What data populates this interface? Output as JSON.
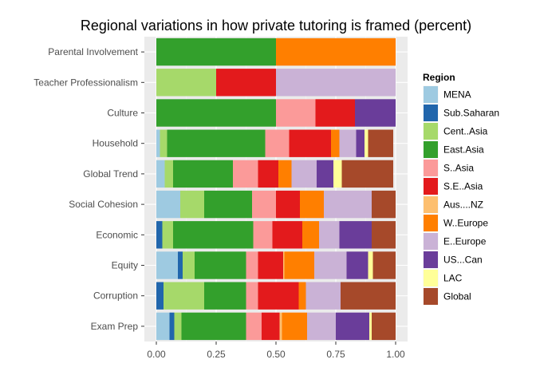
{
  "chart_data": {
    "type": "bar",
    "orientation": "horizontal",
    "stacked": true,
    "title": "Regional variations in how private tutoring is framed (percent)",
    "xlabel": "",
    "ylabel": "",
    "xlim": [
      0,
      1
    ],
    "x_ticks": [
      "0.00",
      "0.25",
      "0.50",
      "0.75",
      "1.00"
    ],
    "grid": true,
    "legend_position": "right",
    "legend_title": "Region",
    "categories": [
      "Parental Involvement",
      "Teacher Professionalism",
      "Culture",
      "Household",
      "Global Trend",
      "Social Cohesion",
      "Economic",
      "Equity",
      "Corruption",
      "Exam Prep"
    ],
    "series": [
      {
        "name": "MENA",
        "color": "#9ecae1",
        "values": [
          0,
          0,
          0,
          0.015,
          0.035,
          0.1,
          0,
          0.09,
          0,
          0.055
        ]
      },
      {
        "name": "Sub.Saharan",
        "color": "#2166ac",
        "values": [
          0,
          0,
          0,
          0,
          0,
          0,
          0.025,
          0.02,
          0.03,
          0.02
        ]
      },
      {
        "name": "Cent..Asia",
        "color": "#a6d96a",
        "values": [
          0,
          0.25,
          0,
          0.03,
          0.035,
          0.1,
          0.045,
          0.05,
          0.17,
          0.03
        ]
      },
      {
        "name": "East.Asia",
        "color": "#33a02c",
        "values": [
          0.5,
          0,
          0.5,
          0.41,
          0.25,
          0.2,
          0.335,
          0.215,
          0.175,
          0.27
        ]
      },
      {
        "name": "S..Asia",
        "color": "#fb9a99",
        "values": [
          0,
          0,
          0.165,
          0.1,
          0.105,
          0.1,
          0.08,
          0.05,
          0.05,
          0.065
        ]
      },
      {
        "name": "S.E..Asia",
        "color": "#e31a1c",
        "values": [
          0,
          0.25,
          0.165,
          0.175,
          0.085,
          0.1,
          0.125,
          0.105,
          0.17,
          0.075
        ]
      },
      {
        "name": "Aus....NZ",
        "color": "#fdbf6f",
        "values": [
          0,
          0,
          0,
          0,
          0,
          0,
          0,
          0.005,
          0,
          0.01
        ]
      },
      {
        "name": "W..Europe",
        "color": "#ff7f00",
        "values": [
          0.5,
          0,
          0,
          0.035,
          0.055,
          0.1,
          0.07,
          0.125,
          0.03,
          0.105
        ]
      },
      {
        "name": "E..Europe",
        "color": "#cab2d6",
        "values": [
          0,
          0.5,
          0,
          0.07,
          0.105,
          0.2,
          0.085,
          0.135,
          0.145,
          0.12
        ]
      },
      {
        "name": "US...Can",
        "color": "#6a3d9a",
        "values": [
          0,
          0,
          0.17,
          0.035,
          0.07,
          0,
          0.135,
          0.09,
          0,
          0.14
        ]
      },
      {
        "name": "LAC",
        "color": "#ffff99",
        "values": [
          0,
          0,
          0,
          0.015,
          0.035,
          0,
          0,
          0.02,
          0,
          0.01
        ]
      },
      {
        "name": "Global",
        "color": "#a6492a",
        "values": [
          0,
          0,
          0,
          0.105,
          0.215,
          0.1,
          0.1,
          0.095,
          0.23,
          0.1
        ]
      }
    ]
  }
}
